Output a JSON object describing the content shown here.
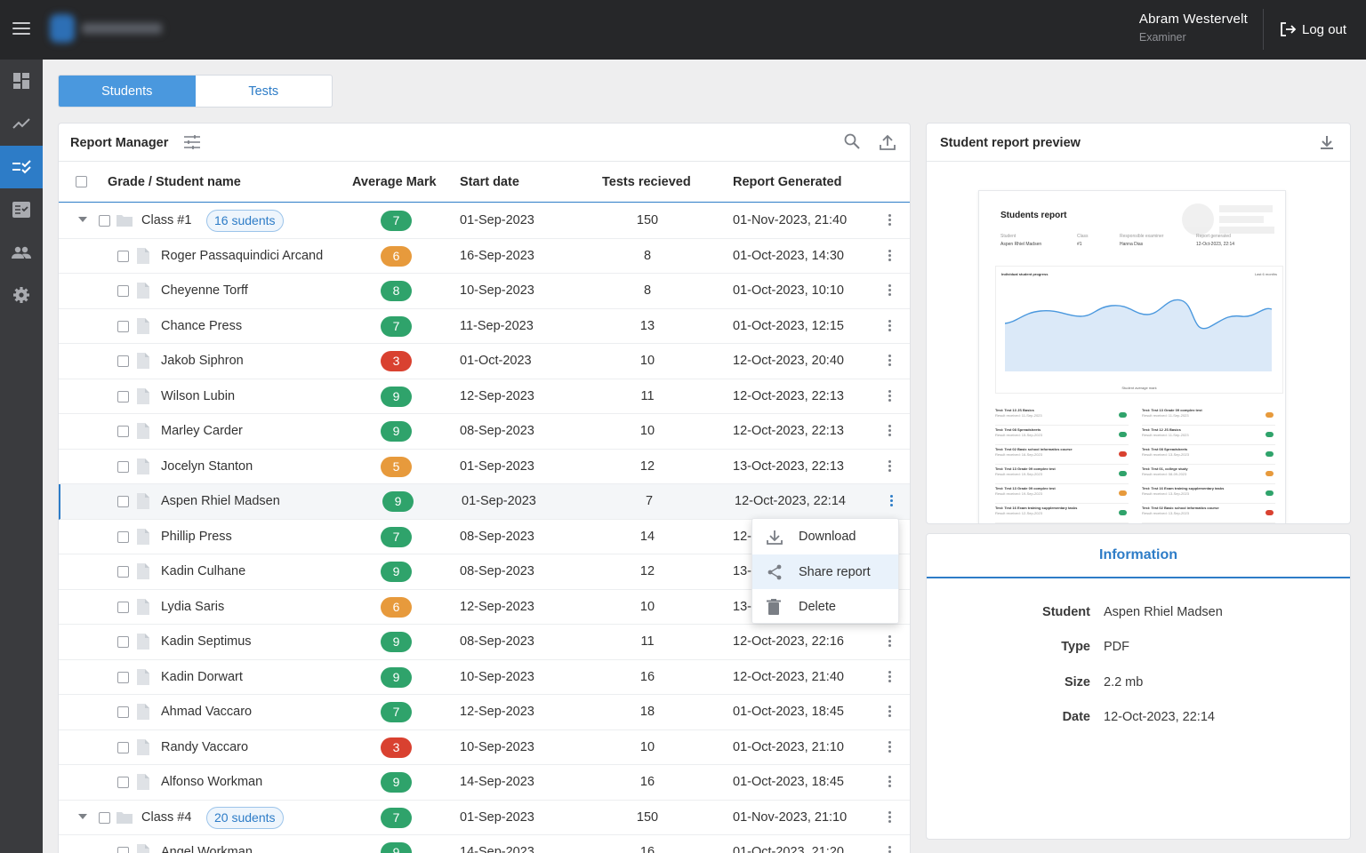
{
  "user": {
    "name": "Abram Westervelt",
    "role": "Examiner",
    "logout_label": "Log out"
  },
  "tabs": [
    {
      "label": "Students",
      "active": true
    },
    {
      "label": "Tests",
      "active": false
    }
  ],
  "report_manager": {
    "title": "Report Manager",
    "columns": [
      "Grade / Student name",
      "Average Mark",
      "Start date",
      "Tests recieved",
      "Report Generated"
    ],
    "rows": [
      {
        "type": "class",
        "name": "Class #1",
        "count": "16 sudents",
        "mark": "7",
        "start": "01-Sep-2023",
        "tests": "150",
        "generated": "01-Nov-2023, 21:40"
      },
      {
        "type": "student",
        "name": "Roger Passaquindici Arcand",
        "mark": "6",
        "start": "16-Sep-2023",
        "tests": "8",
        "generated": "01-Oct-2023, 14:30"
      },
      {
        "type": "student",
        "name": "Cheyenne Torff",
        "mark": "8",
        "start": "10-Sep-2023",
        "tests": "8",
        "generated": "01-Oct-2023, 10:10"
      },
      {
        "type": "student",
        "name": "Chance Press",
        "mark": "7",
        "start": "11-Sep-2023",
        "tests": "13",
        "generated": "01-Oct-2023, 12:15"
      },
      {
        "type": "student",
        "name": "Jakob Siphron",
        "mark": "3",
        "start": "01-Oct-2023",
        "tests": "10",
        "generated": "12-Oct-2023, 20:40"
      },
      {
        "type": "student",
        "name": "Wilson Lubin",
        "mark": "9",
        "start": "12-Sep-2023",
        "tests": "11",
        "generated": "12-Oct-2023, 22:13"
      },
      {
        "type": "student",
        "name": "Marley Carder",
        "mark": "9",
        "start": "08-Sep-2023",
        "tests": "10",
        "generated": "12-Oct-2023, 22:13"
      },
      {
        "type": "student",
        "name": "Jocelyn Stanton",
        "mark": "5",
        "start": "01-Sep-2023",
        "tests": "12",
        "generated": "13-Oct-2023, 22:13"
      },
      {
        "type": "student",
        "name": "Aspen Rhiel Madsen",
        "mark": "9",
        "start": "01-Sep-2023",
        "tests": "7",
        "generated": "12-Oct-2023, 22:14",
        "selected": true
      },
      {
        "type": "student",
        "name": "Phillip Press",
        "mark": "7",
        "start": "08-Sep-2023",
        "tests": "14",
        "generated": "12-"
      },
      {
        "type": "student",
        "name": "Kadin Culhane",
        "mark": "9",
        "start": "08-Sep-2023",
        "tests": "12",
        "generated": "13-"
      },
      {
        "type": "student",
        "name": "Lydia Saris",
        "mark": "6",
        "start": "12-Sep-2023",
        "tests": "10",
        "generated": "13-"
      },
      {
        "type": "student",
        "name": "Kadin Septimus",
        "mark": "9",
        "start": "08-Sep-2023",
        "tests": "11",
        "generated": "12-Oct-2023, 22:16"
      },
      {
        "type": "student",
        "name": "Kadin Dorwart",
        "mark": "9",
        "start": "10-Sep-2023",
        "tests": "16",
        "generated": "12-Oct-2023, 21:40"
      },
      {
        "type": "student",
        "name": "Ahmad Vaccaro",
        "mark": "7",
        "start": "12-Sep-2023",
        "tests": "18",
        "generated": "01-Oct-2023, 18:45"
      },
      {
        "type": "student",
        "name": "Randy Vaccaro",
        "mark": "3",
        "start": "10-Sep-2023",
        "tests": "10",
        "generated": "01-Oct-2023, 21:10"
      },
      {
        "type": "student",
        "name": "Alfonso Workman",
        "mark": "9",
        "start": "14-Sep-2023",
        "tests": "16",
        "generated": "01-Oct-2023, 18:45"
      },
      {
        "type": "class",
        "name": "Class #4",
        "count": "20 sudents",
        "mark": "7",
        "start": "01-Sep-2023",
        "tests": "150",
        "generated": "01-Nov-2023, 21:10"
      },
      {
        "type": "student",
        "name": "Angel Workman",
        "mark": "9",
        "start": "14-Sep-2023",
        "tests": "16",
        "generated": "01-Oct-2023, 21:20"
      }
    ]
  },
  "context_menu": {
    "items": [
      "Download",
      "Share report",
      "Delete"
    ],
    "hovered": "Share report"
  },
  "preview": {
    "title": "Student report preview",
    "doc": {
      "title": "Students report",
      "meta": [
        {
          "label": "Student",
          "value": "Aspen Rhiel Madsen"
        },
        {
          "label": "Class",
          "value": "#1"
        },
        {
          "label": "Responsible examiner",
          "value": "Hanna Dias"
        },
        {
          "label": "Report generated",
          "value": "12-Oct-2023, 22:14"
        }
      ],
      "chart_title": "Individual student progress",
      "chart_range": "Last 6 months",
      "chart_legend": "Student average mark",
      "tests_left": [
        {
          "name": "Test: Test 13 JS Basics",
          "received": "Result received: 11-Sep-2023",
          "mark": "9"
        },
        {
          "name": "Test: Test 08 Spreadsheets",
          "received": "Result received: 15-Sep-2023",
          "mark": "9"
        },
        {
          "name": "Test: Test 02 Basic school informatics course",
          "received": "Result received: 16-Sep-2023",
          "mark": "3"
        },
        {
          "name": "Test: Test 13 Grade 09 complex test",
          "received": "Result received: 19-Sep-2023",
          "mark": "9"
        },
        {
          "name": "Test: Test 13 Grade 09 complex test",
          "received": "Result received: 19-Sep-2023",
          "mark": "6"
        },
        {
          "name": "Test: Test 16 Exam training supplementary tasks",
          "received": "Result received: 12-Sep-2023",
          "mark": "9"
        }
      ],
      "tests_right": [
        {
          "name": "Test: Test 13 Grade 09 complex test",
          "received": "Result received: 11-Sep-2023",
          "mark": "6"
        },
        {
          "name": "Test: Test 12 JS Basics",
          "received": "Result received: 11-Sep-2023",
          "mark": "9"
        },
        {
          "name": "Test: Test 08 Spreadsheets",
          "received": "Result received: 13-Sep-2023",
          "mark": "9"
        },
        {
          "name": "Test: Test 01, college study",
          "received": "Result received: 08-09-2023",
          "mark": "6"
        },
        {
          "name": "Test: Test 16 Exam training supplementary tasks",
          "received": "Result received: 13-Sep-2023",
          "mark": "9"
        },
        {
          "name": "Test: Test 02 Basic school informatics course",
          "received": "Result received: 13-Sep-2023",
          "mark": "3"
        }
      ]
    }
  },
  "information": {
    "title": "Information",
    "fields": [
      {
        "key": "Student",
        "value": "Aspen Rhiel Madsen"
      },
      {
        "key": "Type",
        "value": "PDF"
      },
      {
        "key": "Size",
        "value": "2.2 mb"
      },
      {
        "key": "Date",
        "value": "12-Oct-2023, 22:14"
      }
    ]
  },
  "colors": {
    "accent": "#2d7cc7",
    "mark_high": "#2fa36b",
    "mark_mid": "#e79a3c",
    "mark_low": "#d94130"
  }
}
